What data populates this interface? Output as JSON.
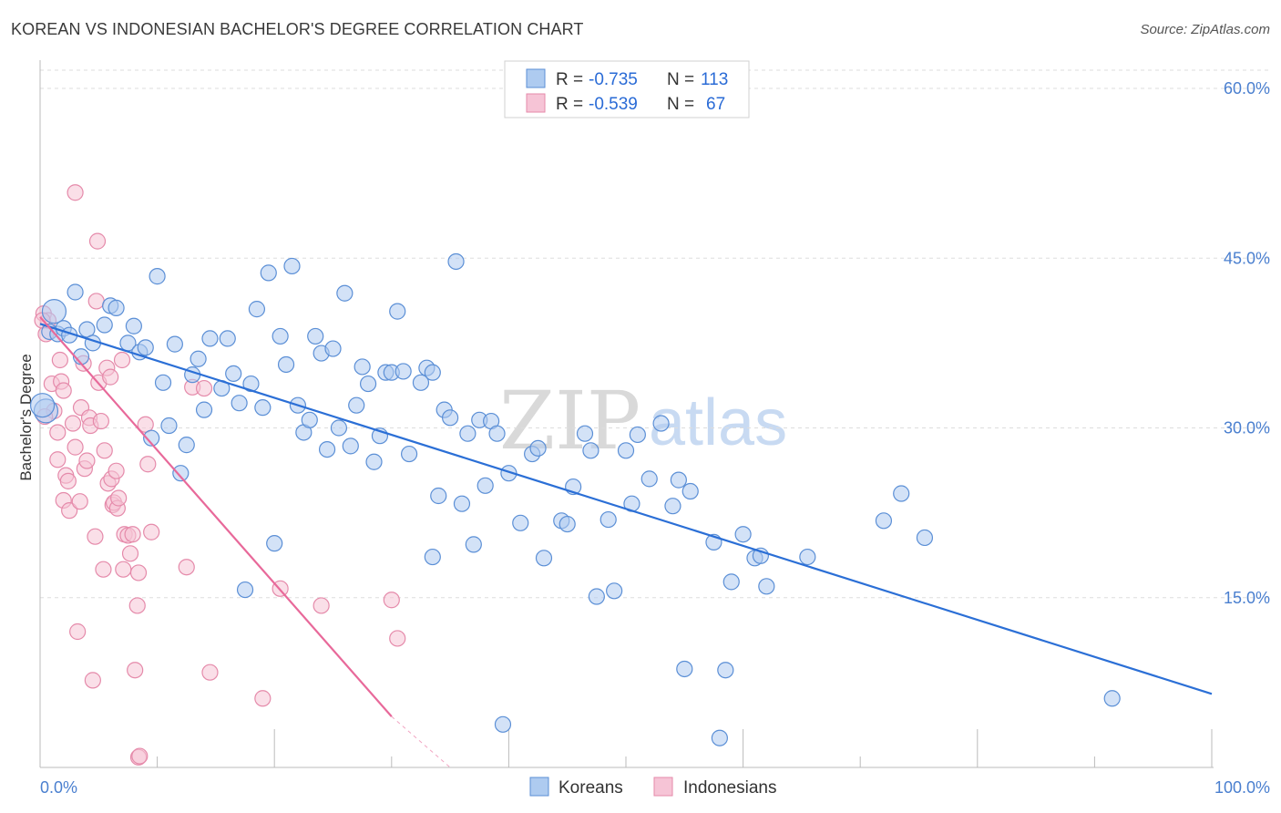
{
  "title": "KOREAN VS INDONESIAN BACHELOR'S DEGREE CORRELATION CHART",
  "source": "Source: ZipAtlas.com",
  "watermark": {
    "zip": "ZIP",
    "atlas": "atlas"
  },
  "colors": {
    "korean_fill": "#aecbf0",
    "korean_stroke": "#5b8fd6",
    "korean_line": "#2b6fd6",
    "indonesian_fill": "#f6c4d6",
    "indonesian_stroke": "#e58aaa",
    "indonesian_line": "#e8699a",
    "grid": "#dddddd",
    "tick_text": "#4a7fcf"
  },
  "legend": {
    "rows": [
      {
        "r_label": "R =",
        "r_value": "-0.735",
        "n_label": "N =",
        "n_value": "113"
      },
      {
        "r_label": "R =",
        "r_value": "-0.539",
        "n_label": "N =",
        "n_value": "67"
      }
    ]
  },
  "bottom_legend": [
    "Koreans",
    "Indonesians"
  ],
  "chart_data": {
    "type": "scatter",
    "title": "KOREAN VS INDONESIAN BACHELOR'S DEGREE CORRELATION CHART",
    "xlabel": "",
    "ylabel": "Bachelor's Degree",
    "xlim": [
      0,
      100
    ],
    "ylim": [
      0,
      63
    ],
    "x_tick_labels": [
      "0.0%",
      "100.0%"
    ],
    "y_ticks": [
      15,
      30,
      45,
      60
    ],
    "y_tick_labels": [
      "15.0%",
      "30.0%",
      "45.0%",
      "60.0%"
    ],
    "grid": true,
    "legend_position": "top-center",
    "series": [
      {
        "name": "Koreans",
        "r": -0.735,
        "n": 113,
        "trend": {
          "x": [
            0,
            100
          ],
          "y": [
            39.2,
            6.5
          ]
        },
        "points": [
          [
            0.5,
            31.5
          ],
          [
            0.8,
            38.5
          ],
          [
            1.2,
            40.3
          ],
          [
            1.5,
            38.3
          ],
          [
            2.0,
            38.8
          ],
          [
            2.5,
            38.2
          ],
          [
            3.0,
            42.0
          ],
          [
            3.5,
            36.3
          ],
          [
            4.0,
            38.7
          ],
          [
            4.5,
            37.5
          ],
          [
            5.5,
            39.1
          ],
          [
            6.0,
            40.8
          ],
          [
            6.5,
            40.6
          ],
          [
            7.5,
            37.5
          ],
          [
            8.0,
            39.0
          ],
          [
            8.5,
            36.7
          ],
          [
            9.0,
            37.1
          ],
          [
            9.5,
            29.1
          ],
          [
            10.0,
            43.4
          ],
          [
            10.5,
            34.0
          ],
          [
            11.0,
            30.2
          ],
          [
            11.5,
            37.4
          ],
          [
            12.0,
            26.0
          ],
          [
            12.5,
            28.5
          ],
          [
            13.0,
            34.7
          ],
          [
            13.5,
            36.1
          ],
          [
            14.0,
            31.6
          ],
          [
            14.5,
            37.9
          ],
          [
            15.5,
            33.5
          ],
          [
            16.0,
            37.9
          ],
          [
            16.5,
            34.8
          ],
          [
            17.0,
            32.2
          ],
          [
            17.5,
            15.7
          ],
          [
            18.0,
            33.9
          ],
          [
            18.5,
            40.5
          ],
          [
            19.0,
            31.8
          ],
          [
            19.5,
            43.7
          ],
          [
            20.0,
            19.8
          ],
          [
            20.5,
            38.1
          ],
          [
            21.0,
            35.6
          ],
          [
            21.5,
            44.3
          ],
          [
            22.0,
            32.0
          ],
          [
            22.5,
            29.6
          ],
          [
            23.0,
            30.7
          ],
          [
            23.5,
            38.1
          ],
          [
            24.0,
            36.6
          ],
          [
            24.5,
            28.1
          ],
          [
            25.0,
            37.0
          ],
          [
            25.5,
            30.0
          ],
          [
            26.0,
            41.9
          ],
          [
            26.5,
            28.4
          ],
          [
            27.0,
            32.0
          ],
          [
            27.5,
            35.4
          ],
          [
            28.0,
            33.9
          ],
          [
            28.5,
            27.0
          ],
          [
            29.0,
            29.3
          ],
          [
            29.5,
            34.9
          ],
          [
            30.0,
            34.9
          ],
          [
            30.5,
            40.3
          ],
          [
            31.0,
            35.0
          ],
          [
            31.5,
            27.7
          ],
          [
            32.5,
            34.0
          ],
          [
            33.0,
            35.3
          ],
          [
            33.5,
            34.9
          ],
          [
            33.5,
            18.6
          ],
          [
            34.0,
            24.0
          ],
          [
            34.5,
            31.6
          ],
          [
            35.0,
            30.9
          ],
          [
            35.5,
            44.7
          ],
          [
            36.0,
            23.3
          ],
          [
            36.5,
            29.5
          ],
          [
            37.0,
            19.7
          ],
          [
            37.5,
            30.7
          ],
          [
            38.0,
            24.9
          ],
          [
            38.5,
            30.6
          ],
          [
            39.0,
            29.5
          ],
          [
            39.5,
            3.8
          ],
          [
            40.0,
            26.0
          ],
          [
            41.0,
            21.6
          ],
          [
            42.0,
            27.7
          ],
          [
            42.5,
            28.2
          ],
          [
            43.0,
            18.5
          ],
          [
            44.5,
            21.8
          ],
          [
            45.0,
            21.5
          ],
          [
            45.5,
            24.8
          ],
          [
            46.5,
            29.5
          ],
          [
            47.0,
            28.0
          ],
          [
            47.5,
            15.1
          ],
          [
            48.5,
            21.9
          ],
          [
            49.0,
            15.6
          ],
          [
            50.0,
            28.0
          ],
          [
            50.5,
            23.3
          ],
          [
            51.0,
            29.4
          ],
          [
            52.0,
            25.5
          ],
          [
            53.0,
            30.4
          ],
          [
            54.0,
            23.1
          ],
          [
            54.5,
            25.4
          ],
          [
            55.0,
            8.7
          ],
          [
            55.5,
            24.4
          ],
          [
            57.5,
            19.9
          ],
          [
            58.0,
            2.6
          ],
          [
            58.5,
            8.6
          ],
          [
            59.0,
            16.4
          ],
          [
            60.0,
            20.6
          ],
          [
            61.0,
            18.5
          ],
          [
            61.5,
            18.7
          ],
          [
            62.0,
            16.0
          ],
          [
            65.5,
            18.6
          ],
          [
            72.0,
            21.8
          ],
          [
            73.5,
            24.2
          ],
          [
            75.5,
            20.3
          ],
          [
            91.5,
            6.1
          ],
          [
            0.2,
            32.0
          ]
        ]
      },
      {
        "name": "Indonesians",
        "r": -0.539,
        "n": 67,
        "trend": {
          "x": [
            0,
            30
          ],
          "y": [
            39.8,
            4.5
          ]
        },
        "trend_ext": {
          "x": [
            30,
            35
          ],
          "y": [
            4.5,
            -1.4
          ]
        },
        "points": [
          [
            0.3,
            40.1
          ],
          [
            0.5,
            38.3
          ],
          [
            0.7,
            39.5
          ],
          [
            1.0,
            33.9
          ],
          [
            1.2,
            31.5
          ],
          [
            1.5,
            29.6
          ],
          [
            1.5,
            27.2
          ],
          [
            1.7,
            36.0
          ],
          [
            1.8,
            34.1
          ],
          [
            2.0,
            33.3
          ],
          [
            2.0,
            23.6
          ],
          [
            2.2,
            25.8
          ],
          [
            2.4,
            25.3
          ],
          [
            2.5,
            22.7
          ],
          [
            2.8,
            30.4
          ],
          [
            3.0,
            28.3
          ],
          [
            3.0,
            50.8
          ],
          [
            3.2,
            12.0
          ],
          [
            3.4,
            23.5
          ],
          [
            3.5,
            31.8
          ],
          [
            3.7,
            35.7
          ],
          [
            3.8,
            26.4
          ],
          [
            4.0,
            27.1
          ],
          [
            4.2,
            30.9
          ],
          [
            4.3,
            30.2
          ],
          [
            4.5,
            7.7
          ],
          [
            4.7,
            20.4
          ],
          [
            4.8,
            41.2
          ],
          [
            4.9,
            46.5
          ],
          [
            5.0,
            34.0
          ],
          [
            5.2,
            30.6
          ],
          [
            5.4,
            17.5
          ],
          [
            5.5,
            28.0
          ],
          [
            5.7,
            35.3
          ],
          [
            5.8,
            25.1
          ],
          [
            6.0,
            34.5
          ],
          [
            6.1,
            25.5
          ],
          [
            6.2,
            23.2
          ],
          [
            6.3,
            23.4
          ],
          [
            6.5,
            26.2
          ],
          [
            6.6,
            22.9
          ],
          [
            6.7,
            23.8
          ],
          [
            7.0,
            36.0
          ],
          [
            7.1,
            17.5
          ],
          [
            7.2,
            20.6
          ],
          [
            7.5,
            20.5
          ],
          [
            7.7,
            18.9
          ],
          [
            7.9,
            20.6
          ],
          [
            8.1,
            8.6
          ],
          [
            8.3,
            14.3
          ],
          [
            8.4,
            17.2
          ],
          [
            8.4,
            0.9
          ],
          [
            8.5,
            1.0
          ],
          [
            9.0,
            30.3
          ],
          [
            9.2,
            26.8
          ],
          [
            9.5,
            20.8
          ],
          [
            12.5,
            17.7
          ],
          [
            13.0,
            33.6
          ],
          [
            14.0,
            33.5
          ],
          [
            14.5,
            8.4
          ],
          [
            19.0,
            6.1
          ],
          [
            20.5,
            15.8
          ],
          [
            24.0,
            14.3
          ],
          [
            30.0,
            14.8
          ],
          [
            30.5,
            11.4
          ],
          [
            0.2,
            39.5
          ],
          [
            0.4,
            31.0
          ]
        ]
      }
    ]
  }
}
